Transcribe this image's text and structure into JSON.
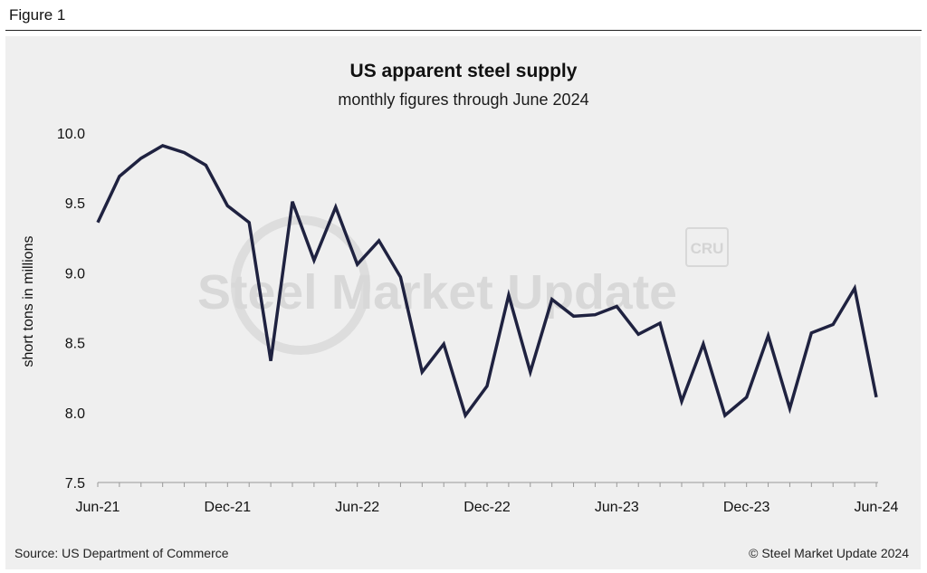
{
  "figure_label": "Figure 1",
  "source": "Source: US Department of Commerce",
  "copyright": "© Steel Market Update 2024",
  "watermark": {
    "text": "Steel Market Update",
    "logo": "CRU"
  },
  "colors": {
    "line": "#1f2240",
    "background": "#efefef",
    "axis": "#999999",
    "watermark": "#d8d8d8"
  },
  "chart_data": {
    "type": "line",
    "title": "US apparent steel supply",
    "subtitle": "monthly figures through June 2024",
    "xlabel": "",
    "ylabel": "short tons in millions",
    "ylim": [
      7.5,
      10.0
    ],
    "yticks": [
      "10.0",
      "9.5",
      "9.0",
      "8.5",
      "8.0",
      "7.5"
    ],
    "ytick_values": [
      10.0,
      9.5,
      9.0,
      8.5,
      8.0,
      7.5
    ],
    "xticks": [
      {
        "label": "Jun-21",
        "index": 0
      },
      {
        "label": "Dec-21",
        "index": 6
      },
      {
        "label": "Jun-22",
        "index": 12
      },
      {
        "label": "Dec-22",
        "index": 18
      },
      {
        "label": "Jun-23",
        "index": 24
      },
      {
        "label": "Dec-23",
        "index": 30
      },
      {
        "label": "Jun-24",
        "index": 36
      }
    ],
    "grid": false,
    "series": [
      {
        "name": "US apparent steel supply",
        "x": [
          "Jun-21",
          "Jul-21",
          "Aug-21",
          "Sep-21",
          "Oct-21",
          "Nov-21",
          "Dec-21",
          "Jan-22",
          "Feb-22",
          "Mar-22",
          "Apr-22",
          "May-22",
          "Jun-22",
          "Jul-22",
          "Aug-22",
          "Sep-22",
          "Oct-22",
          "Nov-22",
          "Dec-22",
          "Jan-23",
          "Feb-23",
          "Mar-23",
          "Apr-23",
          "May-23",
          "Jun-23",
          "Jul-23",
          "Aug-23",
          "Sep-23",
          "Oct-23",
          "Nov-23",
          "Dec-23",
          "Jan-24",
          "Feb-24",
          "Mar-24",
          "Apr-24",
          "May-24",
          "Jun-24"
        ],
        "values": [
          9.36,
          9.69,
          9.82,
          9.91,
          9.86,
          9.77,
          9.48,
          9.36,
          8.37,
          9.51,
          9.09,
          9.47,
          9.06,
          9.23,
          8.97,
          8.29,
          8.49,
          7.98,
          8.19,
          8.84,
          8.29,
          8.81,
          8.69,
          8.7,
          8.76,
          8.56,
          8.64,
          8.08,
          8.49,
          7.98,
          8.11,
          8.55,
          8.03,
          8.57,
          8.63,
          8.89,
          8.11
        ]
      }
    ]
  }
}
